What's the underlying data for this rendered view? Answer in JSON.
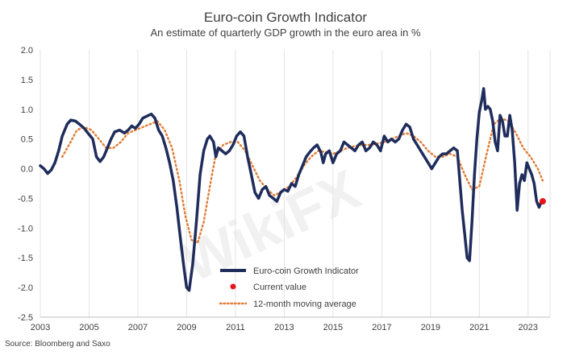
{
  "chart_data": {
    "type": "line",
    "title": "Euro-coin Growth Indicator",
    "subtitle": "An estimate of quarterly GDP growth in the euro area in %",
    "xlabel": "",
    "ylabel": "",
    "xlim": [
      2003,
      2023.9
    ],
    "ylim": [
      -2.5,
      2.0
    ],
    "y_ticks": [
      "2.0",
      "1.5",
      "1.0",
      "0.5",
      "0.0",
      "-0.5",
      "-1.0",
      "-1.5",
      "-2.0",
      "-2.5"
    ],
    "x_ticks": [
      "2003",
      "2005",
      "2007",
      "2009",
      "2011",
      "2013",
      "2015",
      "2017",
      "2019",
      "2021",
      "2023"
    ],
    "grid": "vertical",
    "legend_position": "bottom-center",
    "source": "Source: Bloomberg and Saxo",
    "watermark": "WikiFX",
    "series": [
      {
        "name": "Euro-coin Growth Indicator",
        "color": "#1f2d5c",
        "style": "solid",
        "points": [
          [
            2003.0,
            0.05
          ],
          [
            2003.15,
            0.0
          ],
          [
            2003.3,
            -0.08
          ],
          [
            2003.45,
            -0.02
          ],
          [
            2003.6,
            0.1
          ],
          [
            2003.75,
            0.3
          ],
          [
            2003.9,
            0.55
          ],
          [
            2004.1,
            0.75
          ],
          [
            2004.25,
            0.82
          ],
          [
            2004.45,
            0.8
          ],
          [
            2004.6,
            0.75
          ],
          [
            2004.8,
            0.68
          ],
          [
            2004.95,
            0.6
          ],
          [
            2005.15,
            0.5
          ],
          [
            2005.3,
            0.2
          ],
          [
            2005.45,
            0.12
          ],
          [
            2005.6,
            0.2
          ],
          [
            2005.75,
            0.35
          ],
          [
            2005.9,
            0.5
          ],
          [
            2006.05,
            0.62
          ],
          [
            2006.25,
            0.65
          ],
          [
            2006.45,
            0.6
          ],
          [
            2006.6,
            0.65
          ],
          [
            2006.75,
            0.72
          ],
          [
            2006.9,
            0.68
          ],
          [
            2007.05,
            0.75
          ],
          [
            2007.2,
            0.85
          ],
          [
            2007.35,
            0.88
          ],
          [
            2007.55,
            0.92
          ],
          [
            2007.7,
            0.85
          ],
          [
            2007.85,
            0.65
          ],
          [
            2008.0,
            0.55
          ],
          [
            2008.15,
            0.35
          ],
          [
            2008.3,
            0.1
          ],
          [
            2008.45,
            -0.2
          ],
          [
            2008.6,
            -0.65
          ],
          [
            2008.75,
            -1.2
          ],
          [
            2008.9,
            -1.7
          ],
          [
            2009.0,
            -2.0
          ],
          [
            2009.1,
            -2.05
          ],
          [
            2009.25,
            -1.6
          ],
          [
            2009.4,
            -0.9
          ],
          [
            2009.55,
            -0.1
          ],
          [
            2009.7,
            0.3
          ],
          [
            2009.85,
            0.5
          ],
          [
            2009.95,
            0.55
          ],
          [
            2010.1,
            0.45
          ],
          [
            2010.2,
            0.2
          ],
          [
            2010.3,
            0.35
          ],
          [
            2010.45,
            0.3
          ],
          [
            2010.6,
            0.25
          ],
          [
            2010.75,
            0.3
          ],
          [
            2010.9,
            0.4
          ],
          [
            2011.05,
            0.55
          ],
          [
            2011.2,
            0.62
          ],
          [
            2011.35,
            0.55
          ],
          [
            2011.5,
            0.2
          ],
          [
            2011.65,
            -0.1
          ],
          [
            2011.8,
            -0.4
          ],
          [
            2011.95,
            -0.5
          ],
          [
            2012.1,
            -0.35
          ],
          [
            2012.25,
            -0.3
          ],
          [
            2012.4,
            -0.45
          ],
          [
            2012.55,
            -0.5
          ],
          [
            2012.7,
            -0.55
          ],
          [
            2012.85,
            -0.4
          ],
          [
            2013.0,
            -0.35
          ],
          [
            2013.15,
            -0.38
          ],
          [
            2013.3,
            -0.25
          ],
          [
            2013.45,
            -0.3
          ],
          [
            2013.6,
            -0.1
          ],
          [
            2013.75,
            0.05
          ],
          [
            2013.9,
            0.2
          ],
          [
            2014.05,
            0.28
          ],
          [
            2014.2,
            0.35
          ],
          [
            2014.35,
            0.4
          ],
          [
            2014.5,
            0.28
          ],
          [
            2014.6,
            0.1
          ],
          [
            2014.7,
            0.25
          ],
          [
            2014.85,
            0.3
          ],
          [
            2015.0,
            0.1
          ],
          [
            2015.15,
            0.25
          ],
          [
            2015.3,
            0.3
          ],
          [
            2015.45,
            0.45
          ],
          [
            2015.6,
            0.4
          ],
          [
            2015.75,
            0.35
          ],
          [
            2015.9,
            0.3
          ],
          [
            2016.05,
            0.4
          ],
          [
            2016.2,
            0.45
          ],
          [
            2016.35,
            0.3
          ],
          [
            2016.5,
            0.35
          ],
          [
            2016.65,
            0.45
          ],
          [
            2016.8,
            0.4
          ],
          [
            2016.95,
            0.3
          ],
          [
            2017.1,
            0.55
          ],
          [
            2017.25,
            0.45
          ],
          [
            2017.4,
            0.5
          ],
          [
            2017.55,
            0.45
          ],
          [
            2017.7,
            0.5
          ],
          [
            2017.85,
            0.65
          ],
          [
            2018.0,
            0.75
          ],
          [
            2018.15,
            0.7
          ],
          [
            2018.3,
            0.5
          ],
          [
            2018.45,
            0.4
          ],
          [
            2018.6,
            0.3
          ],
          [
            2018.75,
            0.2
          ],
          [
            2018.9,
            0.1
          ],
          [
            2019.05,
            0.0
          ],
          [
            2019.2,
            0.1
          ],
          [
            2019.35,
            0.2
          ],
          [
            2019.5,
            0.25
          ],
          [
            2019.65,
            0.25
          ],
          [
            2019.8,
            0.3
          ],
          [
            2019.95,
            0.35
          ],
          [
            2020.1,
            0.3
          ],
          [
            2020.2,
            -0.2
          ],
          [
            2020.3,
            -0.7
          ],
          [
            2020.4,
            -1.1
          ],
          [
            2020.5,
            -1.5
          ],
          [
            2020.6,
            -1.55
          ],
          [
            2020.7,
            -0.9
          ],
          [
            2020.8,
            -0.1
          ],
          [
            2020.9,
            0.5
          ],
          [
            2021.0,
            0.95
          ],
          [
            2021.1,
            1.15
          ],
          [
            2021.18,
            1.35
          ],
          [
            2021.25,
            1.0
          ],
          [
            2021.35,
            1.05
          ],
          [
            2021.45,
            1.0
          ],
          [
            2021.55,
            0.8
          ],
          [
            2021.65,
            0.45
          ],
          [
            2021.75,
            0.3
          ],
          [
            2021.85,
            0.9
          ],
          [
            2021.95,
            0.8
          ],
          [
            2022.05,
            0.55
          ],
          [
            2022.15,
            0.55
          ],
          [
            2022.25,
            0.9
          ],
          [
            2022.35,
            0.65
          ],
          [
            2022.45,
            0.1
          ],
          [
            2022.55,
            -0.7
          ],
          [
            2022.65,
            -0.25
          ],
          [
            2022.75,
            -0.1
          ],
          [
            2022.85,
            -0.2
          ],
          [
            2022.95,
            0.1
          ],
          [
            2023.05,
            0.0
          ],
          [
            2023.15,
            -0.1
          ],
          [
            2023.25,
            -0.25
          ],
          [
            2023.35,
            -0.55
          ],
          [
            2023.45,
            -0.65
          ],
          [
            2023.55,
            -0.55
          ]
        ]
      },
      {
        "name": "Current value",
        "color": "#e8141c",
        "style": "marker",
        "points": [
          [
            2023.6,
            -0.55
          ]
        ]
      },
      {
        "name": "12-month moving average",
        "color": "#e0803c",
        "style": "dotted",
        "points": [
          [
            2003.9,
            0.2
          ],
          [
            2004.2,
            0.42
          ],
          [
            2004.5,
            0.65
          ],
          [
            2004.8,
            0.7
          ],
          [
            2005.1,
            0.65
          ],
          [
            2005.4,
            0.5
          ],
          [
            2005.7,
            0.35
          ],
          [
            2006.0,
            0.35
          ],
          [
            2006.3,
            0.45
          ],
          [
            2006.6,
            0.6
          ],
          [
            2006.9,
            0.65
          ],
          [
            2007.2,
            0.7
          ],
          [
            2007.5,
            0.75
          ],
          [
            2007.8,
            0.8
          ],
          [
            2008.1,
            0.65
          ],
          [
            2008.4,
            0.35
          ],
          [
            2008.7,
            -0.2
          ],
          [
            2008.95,
            -0.8
          ],
          [
            2009.2,
            -1.2
          ],
          [
            2009.45,
            -1.25
          ],
          [
            2009.7,
            -0.9
          ],
          [
            2009.95,
            -0.3
          ],
          [
            2010.2,
            0.25
          ],
          [
            2010.5,
            0.4
          ],
          [
            2010.8,
            0.45
          ],
          [
            2011.1,
            0.45
          ],
          [
            2011.4,
            0.3
          ],
          [
            2011.7,
            0.05
          ],
          [
            2012.0,
            -0.2
          ],
          [
            2012.3,
            -0.35
          ],
          [
            2012.6,
            -0.45
          ],
          [
            2012.9,
            -0.38
          ],
          [
            2013.2,
            -0.3
          ],
          [
            2013.5,
            -0.15
          ],
          [
            2013.8,
            0.05
          ],
          [
            2014.1,
            0.2
          ],
          [
            2014.4,
            0.3
          ],
          [
            2014.7,
            0.28
          ],
          [
            2015.0,
            0.25
          ],
          [
            2015.3,
            0.3
          ],
          [
            2015.6,
            0.35
          ],
          [
            2015.9,
            0.38
          ],
          [
            2016.2,
            0.4
          ],
          [
            2016.5,
            0.4
          ],
          [
            2016.8,
            0.42
          ],
          [
            2017.1,
            0.45
          ],
          [
            2017.4,
            0.5
          ],
          [
            2017.7,
            0.55
          ],
          [
            2018.0,
            0.6
          ],
          [
            2018.3,
            0.55
          ],
          [
            2018.6,
            0.45
          ],
          [
            2018.9,
            0.3
          ],
          [
            2019.2,
            0.2
          ],
          [
            2019.5,
            0.2
          ],
          [
            2019.8,
            0.25
          ],
          [
            2020.1,
            0.2
          ],
          [
            2020.4,
            -0.1
          ],
          [
            2020.7,
            -0.35
          ],
          [
            2021.0,
            -0.3
          ],
          [
            2021.3,
            0.25
          ],
          [
            2021.6,
            0.75
          ],
          [
            2021.9,
            0.85
          ],
          [
            2022.2,
            0.8
          ],
          [
            2022.5,
            0.6
          ],
          [
            2022.8,
            0.35
          ],
          [
            2023.1,
            0.2
          ],
          [
            2023.4,
            0.0
          ],
          [
            2023.6,
            -0.2
          ]
        ]
      }
    ]
  }
}
